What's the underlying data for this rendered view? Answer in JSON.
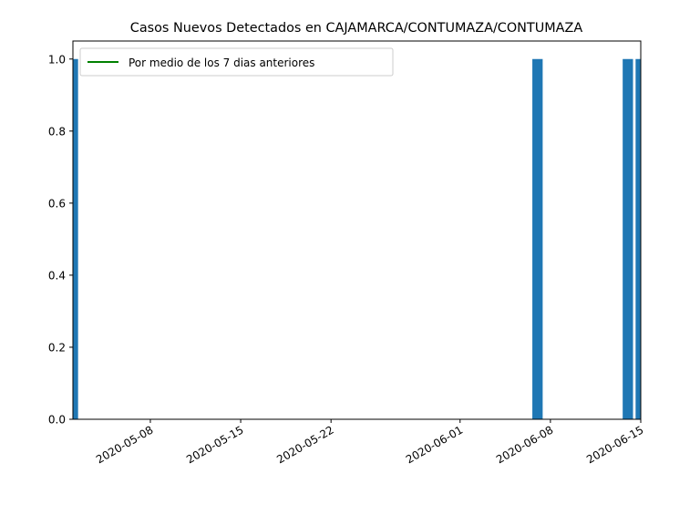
{
  "chart_data": {
    "type": "bar",
    "title": "Casos Nuevos Detectados en CAJAMARCA/CONTUMAZA/CONTUMAZA",
    "xlabel": "",
    "ylabel": "",
    "x_axis_type": "date",
    "xlim": [
      "2020-05-02",
      "2020-06-15"
    ],
    "ylim": [
      0,
      1.05
    ],
    "x_tick_labels": [
      "2020-05-08",
      "2020-05-15",
      "2020-05-22",
      "2020-06-01",
      "2020-06-08",
      "2020-06-15"
    ],
    "y_tick_labels": [
      "0.0",
      "0.2",
      "0.4",
      "0.6",
      "0.8",
      "1.0"
    ],
    "bars": [
      {
        "date": "2020-05-02",
        "value": 1
      },
      {
        "date": "2020-06-07",
        "value": 1
      },
      {
        "date": "2020-06-14",
        "value": 1
      },
      {
        "date": "2020-06-15",
        "value": 1
      }
    ],
    "line_series": {
      "name": "Por medio de los 7 dias anteriores",
      "color": "#008000"
    },
    "bar_color": "#1f77b4",
    "legend_position": "top-left",
    "grid": false,
    "x_tick_labels_rotated": true
  }
}
